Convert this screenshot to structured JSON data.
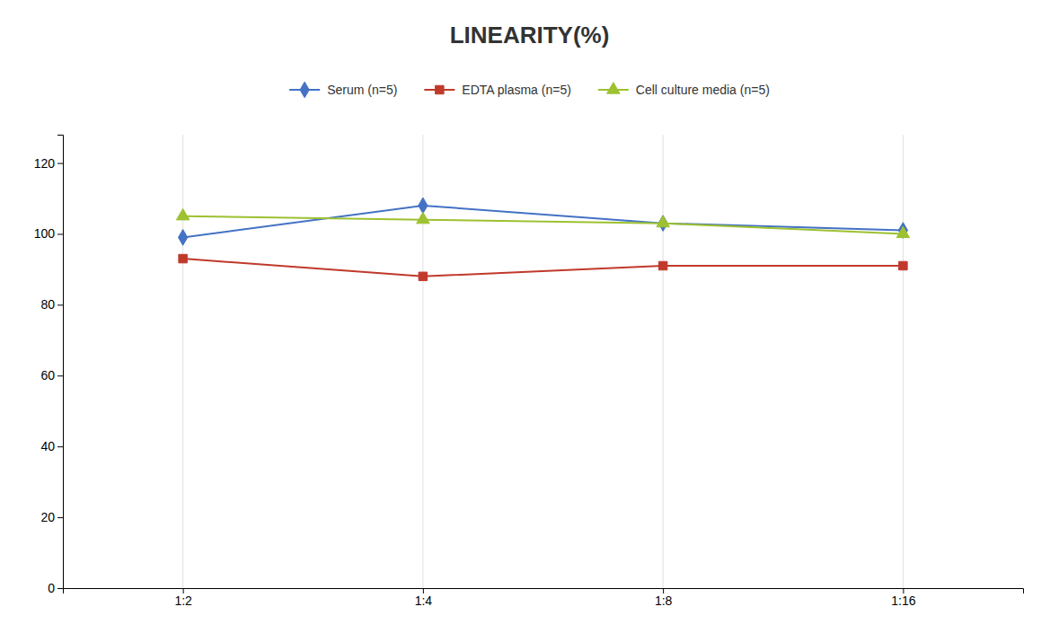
{
  "chart_data": {
    "type": "line",
    "title": "LINEARITY(%)",
    "categories": [
      "1:2",
      "1:4",
      "1:8",
      "1:16"
    ],
    "series": [
      {
        "name": "Serum (n=5)",
        "color": "#4472C4",
        "marker": "diamond",
        "values": [
          99,
          108,
          103,
          101
        ]
      },
      {
        "name": "EDTA plasma (n=5)",
        "color": "#C0392B",
        "marker": "square",
        "values": [
          93,
          88,
          91,
          91
        ]
      },
      {
        "name": "Cell culture media (n=5)",
        "color": "#9DC130",
        "marker": "triangle",
        "values": [
          105,
          104,
          103,
          100
        ]
      }
    ],
    "ylim": [
      0,
      128
    ],
    "yticks": [
      0,
      20,
      40,
      60,
      80,
      100,
      120
    ],
    "grid": "x",
    "legend": "top"
  }
}
